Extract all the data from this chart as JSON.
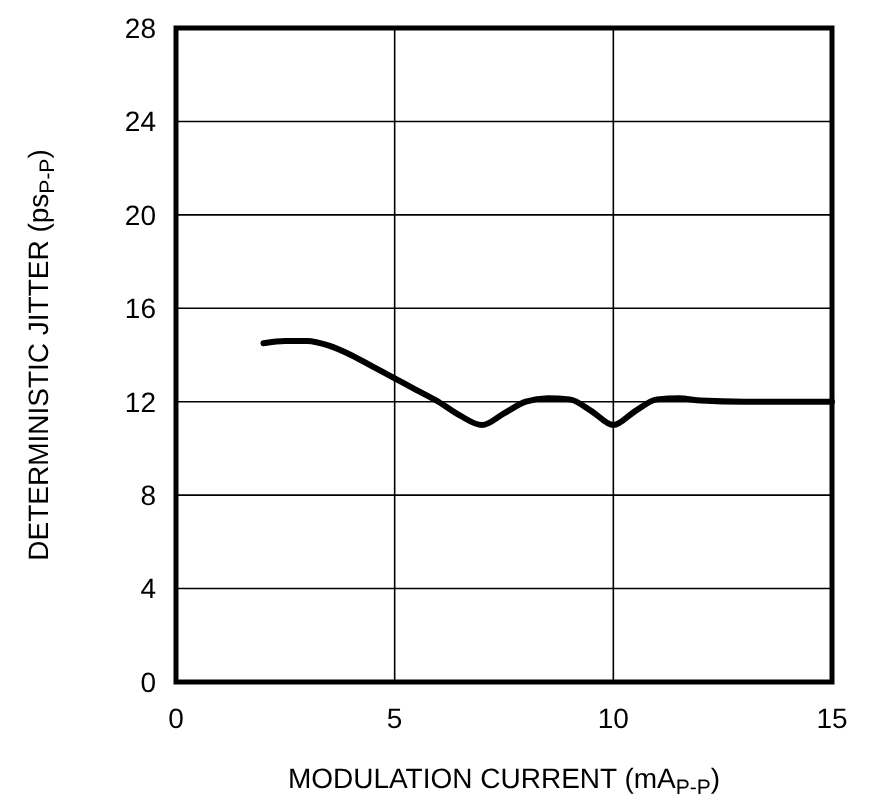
{
  "chart_data": {
    "type": "line",
    "xlabel": "MODULATION CURRENT (mA$_{P-P}$)",
    "ylabel": "DETERMINISTIC JITTER (ps$_{P-P}$)",
    "xlim": [
      0,
      15
    ],
    "xticks": [
      0,
      5,
      10,
      15
    ],
    "ylim": [
      0,
      28
    ],
    "yticks": [
      0,
      4,
      8,
      12,
      16,
      20,
      24,
      28
    ],
    "grid": true,
    "line_style": "solid",
    "series": [
      {
        "color": "#000000",
        "x": [
          2,
          2.5,
          3,
          3.5,
          4,
          4.5,
          5,
          5.5,
          6,
          6.5,
          7,
          7.5,
          8,
          8.5,
          9,
          9.5,
          10,
          10.5,
          11,
          11.5,
          12,
          13,
          14,
          15
        ],
        "values": [
          14.5,
          14.6,
          14.6,
          14.4,
          14.0,
          13.5,
          13.0,
          12.5,
          12.0,
          11.4,
          11.0,
          11.5,
          12.0,
          12.15,
          12.1,
          11.6,
          11.0,
          11.6,
          12.1,
          12.15,
          12.05,
          12.0,
          12.0,
          12.0
        ]
      }
    ]
  }
}
